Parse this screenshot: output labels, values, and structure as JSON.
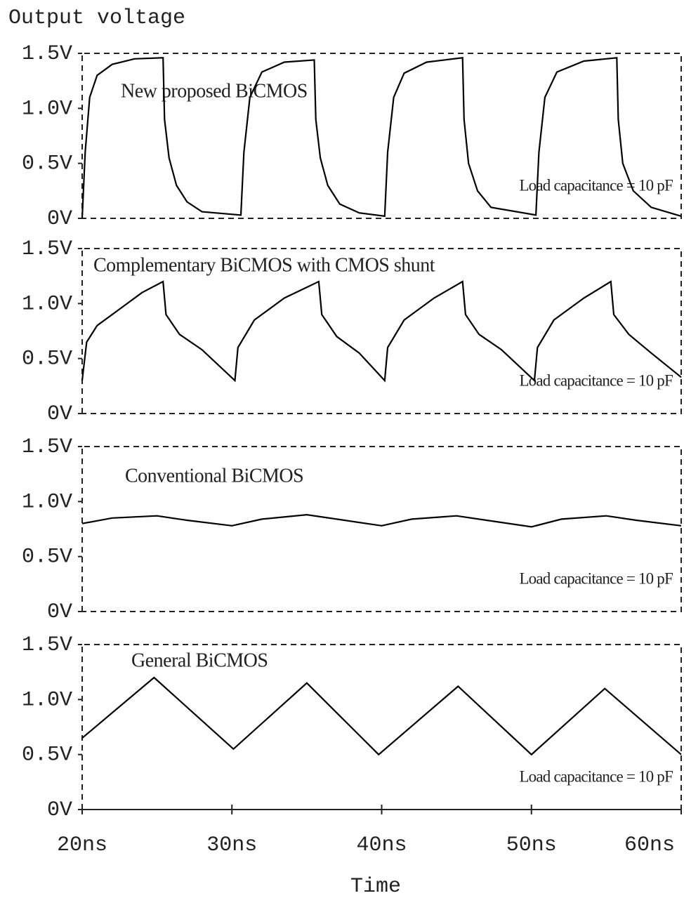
{
  "chart_data": [
    {
      "type": "line",
      "ylabel": "Output voltage",
      "title": "New proposed BiCMOS",
      "annotation": "Load capacitance = 10 pF",
      "x": [
        20.0,
        20.2,
        20.5,
        21.0,
        22.0,
        23.5,
        25.4,
        25.5,
        25.8,
        26.3,
        27.0,
        28.0,
        30.6,
        30.8,
        31.2,
        32.0,
        33.5,
        35.5,
        35.6,
        35.9,
        36.4,
        37.2,
        38.5,
        40.2,
        40.4,
        40.8,
        41.5,
        43.0,
        45.4,
        45.5,
        45.8,
        46.4,
        47.3,
        50.3,
        50.5,
        50.9,
        51.7,
        53.5,
        55.7,
        55.8,
        56.1,
        56.8,
        58.0,
        60.0
      ],
      "values": [
        0.0,
        0.6,
        1.1,
        1.3,
        1.4,
        1.45,
        1.46,
        0.9,
        0.55,
        0.3,
        0.15,
        0.06,
        0.03,
        0.6,
        1.1,
        1.33,
        1.42,
        1.44,
        0.9,
        0.55,
        0.3,
        0.13,
        0.05,
        0.02,
        0.6,
        1.1,
        1.32,
        1.42,
        1.46,
        0.9,
        0.5,
        0.25,
        0.1,
        0.03,
        0.6,
        1.1,
        1.33,
        1.43,
        1.46,
        0.9,
        0.5,
        0.25,
        0.1,
        0.02
      ],
      "color": "#000000",
      "xlim": [
        20,
        60
      ],
      "ylim": [
        0,
        1.5
      ],
      "yticks": [
        {
          "value": 0,
          "label": "0V"
        },
        {
          "value": 0.5,
          "label": "0.5V"
        },
        {
          "value": 1.0,
          "label": "1.0V"
        },
        {
          "value": 1.5,
          "label": "1.5V"
        }
      ]
    },
    {
      "type": "line",
      "title": "Complementary BiCMOS with CMOS shunt",
      "annotation": "Load capacitance = 10 pF",
      "x": [
        20.0,
        20.3,
        21.0,
        22.5,
        24.0,
        25.4,
        25.6,
        26.5,
        28.0,
        30.2,
        30.4,
        31.5,
        33.5,
        35.8,
        36.0,
        37.0,
        38.5,
        40.2,
        40.4,
        41.5,
        43.5,
        45.4,
        45.6,
        46.5,
        48.0,
        50.2,
        50.4,
        51.5,
        53.5,
        55.3,
        55.5,
        56.5,
        58.0,
        60.0
      ],
      "values": [
        0.3,
        0.65,
        0.8,
        0.95,
        1.1,
        1.2,
        0.9,
        0.72,
        0.58,
        0.3,
        0.6,
        0.85,
        1.05,
        1.2,
        0.9,
        0.7,
        0.55,
        0.3,
        0.6,
        0.85,
        1.05,
        1.2,
        0.9,
        0.72,
        0.58,
        0.3,
        0.6,
        0.85,
        1.05,
        1.2,
        0.9,
        0.72,
        0.55,
        0.33
      ],
      "color": "#000000",
      "xlim": [
        20,
        60
      ],
      "ylim": [
        0,
        1.5
      ],
      "yticks": [
        {
          "value": 0,
          "label": "0V"
        },
        {
          "value": 0.5,
          "label": "0.5V"
        },
        {
          "value": 1.0,
          "label": "1.0V"
        },
        {
          "value": 1.5,
          "label": "1.5V"
        }
      ]
    },
    {
      "type": "line",
      "title": "Conventional BiCMOS",
      "annotation": "Load capacitance = 10 pF",
      "x": [
        20,
        22,
        25,
        27,
        30,
        32,
        35,
        37,
        40,
        42,
        45,
        47,
        50,
        52,
        55,
        57,
        60
      ],
      "values": [
        0.8,
        0.85,
        0.87,
        0.83,
        0.78,
        0.84,
        0.88,
        0.84,
        0.78,
        0.84,
        0.87,
        0.83,
        0.77,
        0.84,
        0.87,
        0.83,
        0.78
      ],
      "color": "#000000",
      "xlim": [
        20,
        60
      ],
      "ylim": [
        0,
        1.5
      ],
      "yticks": [
        {
          "value": 0,
          "label": "0V"
        },
        {
          "value": 0.5,
          "label": "0.5V"
        },
        {
          "value": 1.0,
          "label": "1.0V"
        },
        {
          "value": 1.5,
          "label": "1.5V"
        }
      ]
    },
    {
      "type": "line",
      "title": "General BiCMOS",
      "annotation": "Load capacitance = 10 pF",
      "xlabel": "Time",
      "x": [
        20,
        24.8,
        30.1,
        35,
        39.8,
        45.1,
        50,
        54.9,
        60
      ],
      "values": [
        0.65,
        1.2,
        0.55,
        1.15,
        0.5,
        1.12,
        0.5,
        1.1,
        0.5
      ],
      "color": "#000000",
      "xlim": [
        20,
        60
      ],
      "ylim": [
        0,
        1.5
      ],
      "yticks": [
        {
          "value": 0,
          "label": "0V"
        },
        {
          "value": 0.5,
          "label": "0.5V"
        },
        {
          "value": 1.0,
          "label": "1.0V"
        },
        {
          "value": 1.5,
          "label": "1.5V"
        }
      ],
      "xticks": [
        {
          "value": 20,
          "label": "20ns"
        },
        {
          "value": 30,
          "label": "30ns"
        },
        {
          "value": 40,
          "label": "40ns"
        },
        {
          "value": 50,
          "label": "50ns"
        },
        {
          "value": 60,
          "label": "60ns"
        }
      ]
    }
  ]
}
